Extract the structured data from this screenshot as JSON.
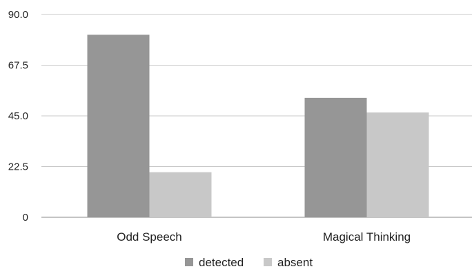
{
  "chart_data": {
    "type": "bar",
    "title": "",
    "xlabel": "",
    "ylabel": "",
    "categories": [
      "Odd Speech",
      "Magical Thinking"
    ],
    "series": [
      {
        "name": "detected",
        "values": [
          81,
          53
        ],
        "color": "#969696"
      },
      {
        "name": "absent",
        "values": [
          20,
          46.5
        ],
        "color": "#c8c8c8"
      }
    ],
    "ylim": [
      0,
      90
    ],
    "yticks": [
      0,
      22.5,
      45,
      67.5,
      90
    ],
    "ytick_labels": [
      "0",
      "22.5",
      "45.0",
      "67.5",
      "90.0"
    ],
    "grid": true,
    "legend": "bottom"
  }
}
